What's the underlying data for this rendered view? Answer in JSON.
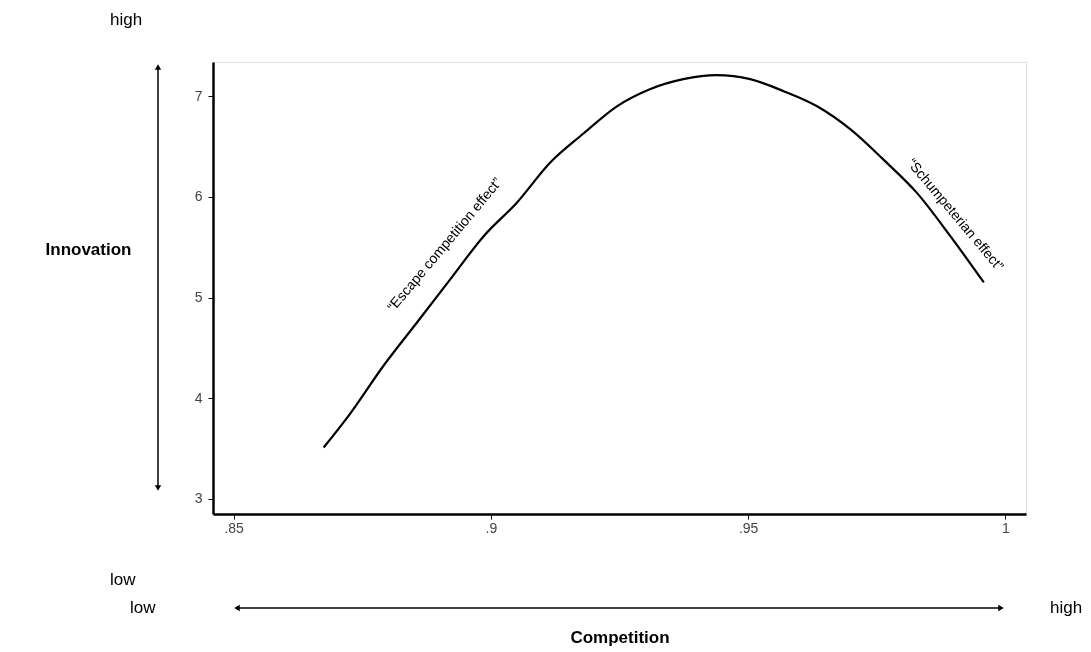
{
  "chart_data": {
    "type": "line",
    "ylabel": "Innovation",
    "x": [
      0.8675,
      0.8727,
      0.8791,
      0.8856,
      0.8921,
      0.8986,
      0.905,
      0.9115,
      0.918,
      0.9245,
      0.9309,
      0.9374,
      0.9439,
      0.9504,
      0.9569,
      0.9634,
      0.9699,
      0.9763,
      0.9828,
      0.9893,
      0.9958
    ],
    "series": [
      {
        "color": "#000000",
        "values": [
          3.51,
          3.85,
          4.32,
          4.75,
          5.18,
          5.61,
          5.94,
          6.34,
          6.63,
          6.9,
          7.07,
          7.17,
          7.21,
          7.17,
          7.05,
          6.9,
          6.67,
          6.37,
          6.04,
          5.61,
          5.15
        ]
      }
    ],
    "xlim": [
      0.846,
      1.004
    ],
    "ylim": [
      2.85,
      7.34
    ],
    "xticks": [
      {
        "value": 0.85,
        "label": ".85"
      },
      {
        "value": 0.9,
        "label": ".9"
      },
      {
        "value": 0.95,
        "label": ".95"
      },
      1
    ],
    "yticks": [
      3,
      4,
      5,
      6,
      7
    ],
    "annotations": [
      "“Escape competition effect”",
      "“Schumpeterian effect”",
      "high",
      "low",
      "low",
      "high",
      "Competition"
    ],
    "grid": false,
    "marker": "none",
    "line_style": "solid"
  }
}
